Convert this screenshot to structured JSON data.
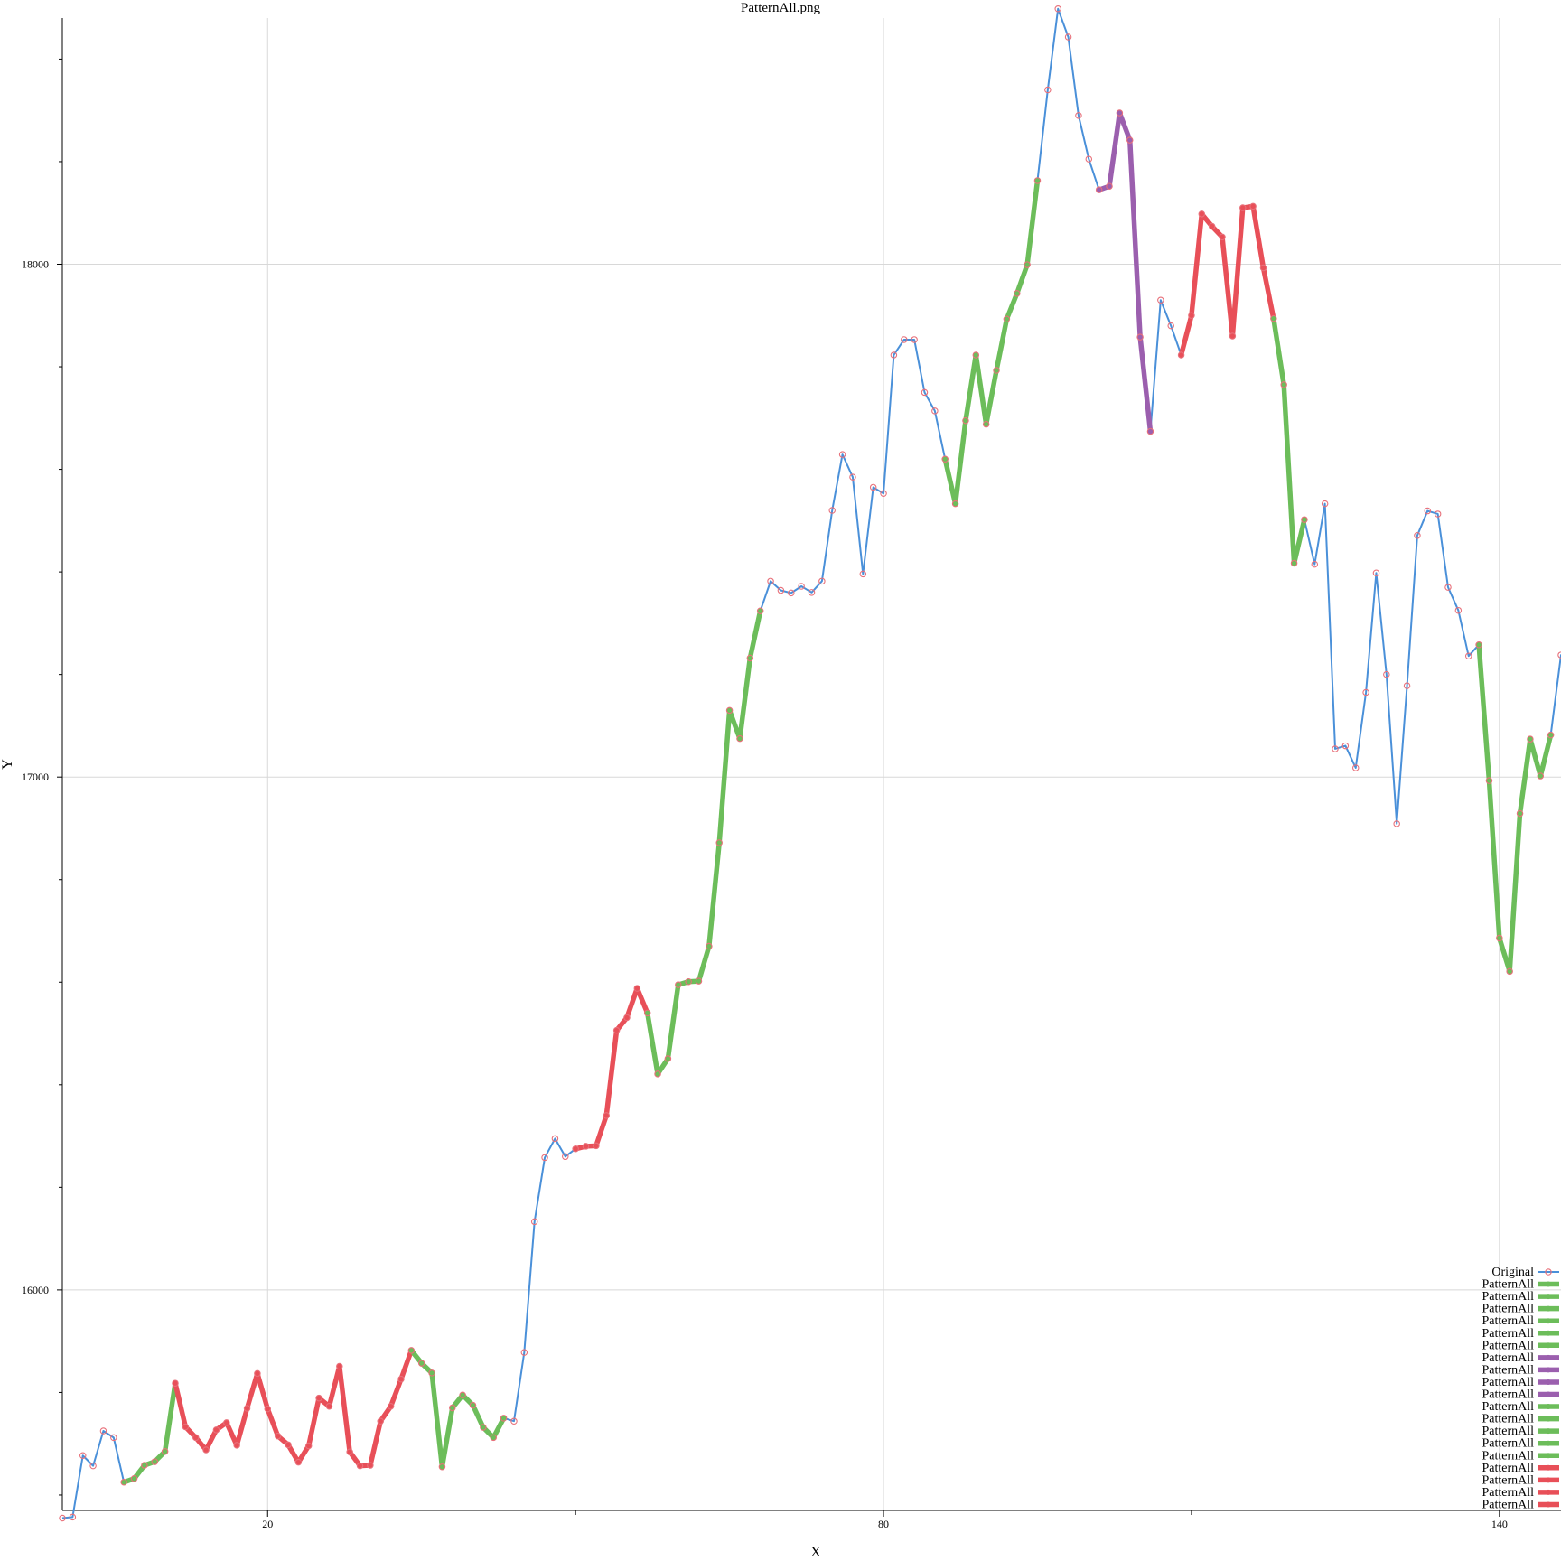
{
  "chart_data": {
    "type": "line",
    "title": "PatternAll.png",
    "xlabel": "X",
    "ylabel": "Y",
    "xlim": [
      0,
      146
    ],
    "ylim": [
      15570,
      18480
    ],
    "x_ticks": [
      20,
      80,
      140
    ],
    "x_minor_ticks": [
      50,
      110
    ],
    "y_ticks": [
      16000,
      17000,
      18000
    ],
    "y_minor_ticks": [
      15600,
      15800,
      16200,
      16400,
      16600,
      16800,
      17200,
      17400,
      17600,
      17800,
      18200,
      18400
    ],
    "grid": true,
    "legend_position": "bottom-right",
    "colors": {
      "original": "#4a90d9",
      "marker": "#e8707a",
      "green": "#6cbd5a",
      "purple": "#9b5fae",
      "red": "#e84f58"
    },
    "original": {
      "name": "Original",
      "y": [
        15555,
        15557,
        15677,
        15657,
        15725,
        15712,
        15625,
        15632,
        15658,
        15665,
        15685,
        15818,
        15733,
        15712,
        15688,
        15727,
        15741,
        15697,
        15769,
        15837,
        15768,
        15715,
        15698,
        15664,
        15696,
        15789,
        15773,
        15851,
        15684,
        15657,
        15658,
        15744,
        15773,
        15826,
        15882,
        15857,
        15838,
        15655,
        15770,
        15795,
        15775,
        15732,
        15712,
        15750,
        15744,
        15878,
        16133,
        16258,
        16295,
        16260,
        16275,
        16280,
        16281,
        16340,
        16506,
        16531,
        16588,
        16540,
        16421,
        16451,
        16595,
        16601,
        16602,
        16670,
        16872,
        17130,
        17075,
        17232,
        17324,
        17382,
        17364,
        17359,
        17372,
        17360,
        17382,
        17520,
        17629,
        17585,
        17396,
        17565,
        17553,
        17823,
        17853,
        17853,
        17750,
        17714,
        17620,
        17533,
        17695,
        17823,
        17688,
        17793,
        17893,
        17943,
        17999,
        18163,
        18340,
        18498,
        18443,
        18290,
        18205,
        18145,
        18152,
        18295,
        18242,
        17858,
        17674,
        17930,
        17880,
        17823,
        17900,
        18098,
        18074,
        18053,
        17860,
        18110,
        18113,
        17993,
        17894,
        17765,
        17417,
        17502,
        17415,
        17533,
        17055,
        17061,
        17018,
        17165,
        17398,
        17200,
        16909,
        17178,
        17471,
        17519,
        17513,
        17370,
        17325,
        17236,
        17258,
        16993,
        16686,
        16621,
        16929,
        17074,
        17002,
        17082,
        17238,
        17216,
        17207
      ]
    },
    "pattern_segments": [
      {
        "color": "green",
        "x": [
          6,
          7,
          8,
          9,
          10,
          11
        ]
      },
      {
        "color": "red",
        "x": [
          11,
          12,
          13,
          14,
          15,
          16,
          17,
          18,
          19,
          20,
          21,
          22,
          23,
          24,
          25,
          26,
          27,
          28,
          29,
          30,
          31,
          32,
          33,
          34
        ]
      },
      {
        "color": "green",
        "x": [
          34,
          35,
          36,
          37,
          38,
          39,
          40,
          41,
          42,
          43
        ]
      },
      {
        "color": "red",
        "x": [
          50,
          51,
          52,
          53,
          54,
          55,
          56,
          57
        ]
      },
      {
        "color": "green",
        "x": [
          57,
          58,
          59,
          60,
          61,
          62,
          63,
          64,
          65,
          66,
          67,
          68
        ]
      },
      {
        "color": "green",
        "x": [
          86,
          87,
          88,
          89,
          90,
          91,
          92,
          93,
          94,
          95
        ]
      },
      {
        "color": "purple",
        "x": [
          101,
          102,
          103,
          104,
          105,
          106
        ]
      },
      {
        "color": "red",
        "x": [
          109,
          110,
          111,
          112,
          113,
          114,
          115,
          116,
          117,
          118
        ]
      },
      {
        "color": "green",
        "x": [
          118,
          119,
          120,
          121
        ]
      },
      {
        "color": "green",
        "x": [
          138,
          139,
          140,
          141,
          142,
          143,
          144,
          145
        ]
      }
    ],
    "legend": [
      {
        "label": "Original",
        "color": "original"
      },
      {
        "label": "PatternAll",
        "color": "green"
      },
      {
        "label": "PatternAll",
        "color": "green"
      },
      {
        "label": "PatternAll",
        "color": "green"
      },
      {
        "label": "PatternAll",
        "color": "green"
      },
      {
        "label": "PatternAll",
        "color": "green"
      },
      {
        "label": "PatternAll",
        "color": "green"
      },
      {
        "label": "PatternAll",
        "color": "purple"
      },
      {
        "label": "PatternAll",
        "color": "purple"
      },
      {
        "label": "PatternAll",
        "color": "purple"
      },
      {
        "label": "PatternAll",
        "color": "purple"
      },
      {
        "label": "PatternAll",
        "color": "green"
      },
      {
        "label": "PatternAll",
        "color": "green"
      },
      {
        "label": "PatternAll",
        "color": "green"
      },
      {
        "label": "PatternAll",
        "color": "green"
      },
      {
        "label": "PatternAll",
        "color": "green"
      },
      {
        "label": "PatternAll",
        "color": "red"
      },
      {
        "label": "PatternAll",
        "color": "red"
      },
      {
        "label": "PatternAll",
        "color": "red"
      },
      {
        "label": "PatternAll",
        "color": "red"
      }
    ]
  }
}
